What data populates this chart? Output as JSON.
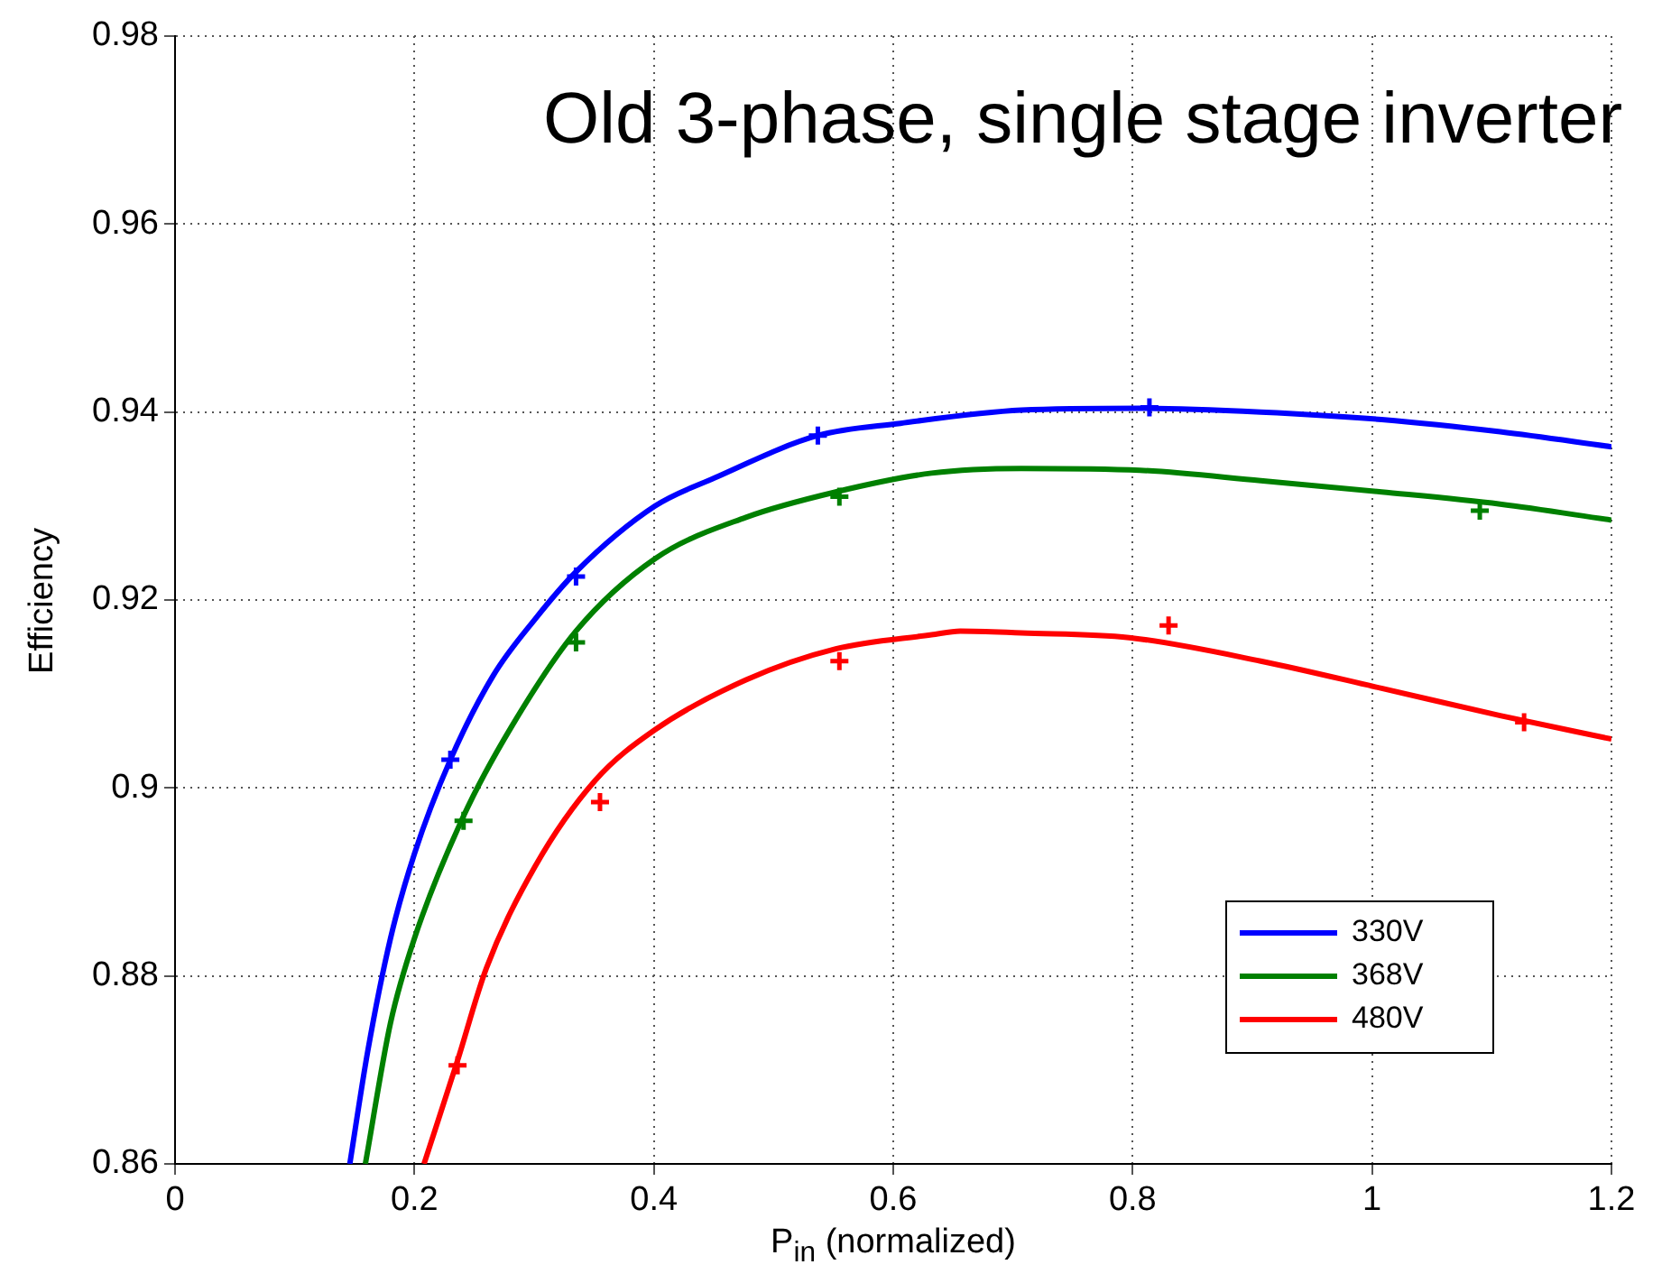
{
  "chart_data": {
    "type": "line",
    "title": "Old 3-phase, single stage inverter",
    "xlabel": "P$_{in}$ (normalized)",
    "ylabel": "Efficiency",
    "xlim": [
      0,
      1.2
    ],
    "xticks": [
      0,
      0.2,
      0.4,
      0.6,
      0.8,
      1,
      1.2
    ],
    "ylim": [
      0.86,
      0.98
    ],
    "yticks": [
      0.86,
      0.88,
      0.9,
      0.92,
      0.94,
      0.96,
      0.98
    ],
    "grid": true,
    "legend": "bottom right",
    "line_style": "solid",
    "series": [
      {
        "name": "330V",
        "color": "#0000ff",
        "marker": "none",
        "x": [
          0.146,
          0.161,
          0.18,
          0.2,
          0.23,
          0.266,
          0.301,
          0.335,
          0.401,
          0.451,
          0.537,
          0.606,
          0.707,
          0.806,
          0.907,
          1.008,
          1.107,
          1.2
        ],
        "values": [
          0.86,
          0.872,
          0.884,
          0.893,
          0.903,
          0.912,
          0.918,
          0.923,
          0.93,
          0.933,
          0.9375,
          0.9388,
          0.9402,
          0.9404,
          0.94,
          0.9392,
          0.9379,
          0.9363
        ]
      },
      {
        "name": "368V",
        "color": "#008000",
        "marker": "none",
        "x": [
          0.159,
          0.18,
          0.2,
          0.241,
          0.281,
          0.335,
          0.401,
          0.477,
          0.552,
          0.632,
          0.707,
          0.806,
          0.907,
          1.008,
          1.107,
          1.2
        ],
        "values": [
          0.86,
          0.875,
          0.884,
          0.897,
          0.9065,
          0.9167,
          0.9244,
          0.9288,
          0.9315,
          0.9335,
          0.934,
          0.9338,
          0.9327,
          0.9315,
          0.9302,
          0.9285
        ]
      },
      {
        "name": "480V",
        "color": "#ff0000",
        "marker": "none",
        "x": [
          0.208,
          0.236,
          0.26,
          0.301,
          0.351,
          0.401,
          0.477,
          0.552,
          0.632,
          0.656,
          0.707,
          0.797,
          0.907,
          1.008,
          1.107,
          1.2
        ],
        "values": [
          0.86,
          0.871,
          0.8808,
          0.8917,
          0.9008,
          0.9062,
          0.9115,
          0.9148,
          0.9163,
          0.9167,
          0.9165,
          0.916,
          0.9135,
          0.9106,
          0.9077,
          0.9052
        ]
      },
      {
        "type": "scatter",
        "color": "#0000ff",
        "marker": "cross",
        "x": [
          0.23,
          0.335,
          0.537,
          0.814
        ],
        "values": [
          0.903,
          0.9225,
          0.9375,
          0.9405
        ]
      },
      {
        "type": "scatter",
        "color": "#008000",
        "marker": "cross",
        "x": [
          0.241,
          0.335,
          0.555,
          1.09
        ],
        "values": [
          0.8965,
          0.9155,
          0.931,
          0.9295
        ]
      },
      {
        "type": "scatter",
        "color": "#ff0000",
        "marker": "cross",
        "x": [
          0.236,
          0.355,
          0.555,
          0.83,
          1.127
        ],
        "values": [
          0.8705,
          0.8985,
          0.9135,
          0.9173,
          0.907
        ]
      }
    ]
  }
}
